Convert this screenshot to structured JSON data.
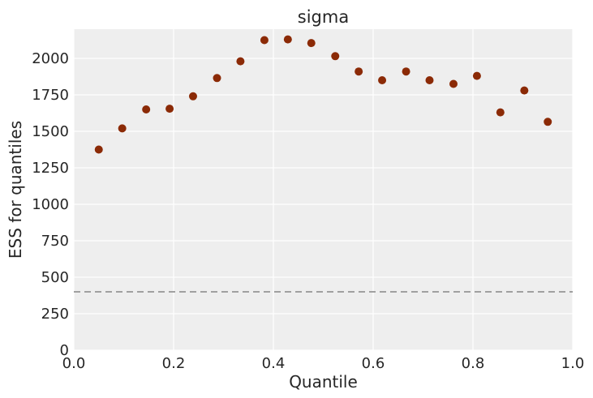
{
  "chart_data": {
    "type": "scatter",
    "title": "sigma",
    "xlabel": "Quantile",
    "ylabel": "ESS for quantiles",
    "xlim": [
      0,
      1
    ],
    "ylim": [
      0,
      2200
    ],
    "x_ticks": [
      0.0,
      0.2,
      0.4,
      0.6,
      0.8,
      1.0
    ],
    "x_tick_labels": [
      "0.0",
      "0.2",
      "0.4",
      "0.6",
      "0.8",
      "1.0"
    ],
    "y_ticks": [
      0,
      250,
      500,
      750,
      1000,
      1250,
      1500,
      1750,
      2000
    ],
    "y_tick_labels": [
      "0",
      "250",
      "500",
      "750",
      "1000",
      "1250",
      "1500",
      "1750",
      "2000"
    ],
    "grid": true,
    "background_color": "#eeeeee",
    "grid_color": "#ffffff",
    "point_color": "#8b2a06",
    "reference_line": {
      "y": 400,
      "style": "dashed",
      "color": "#a0a0a0"
    },
    "points": [
      {
        "x": 0.05,
        "y": 1375
      },
      {
        "x": 0.097,
        "y": 1520
      },
      {
        "x": 0.145,
        "y": 1650
      },
      {
        "x": 0.192,
        "y": 1655
      },
      {
        "x": 0.239,
        "y": 1740
      },
      {
        "x": 0.287,
        "y": 1865
      },
      {
        "x": 0.334,
        "y": 1980
      },
      {
        "x": 0.382,
        "y": 2125
      },
      {
        "x": 0.429,
        "y": 2130
      },
      {
        "x": 0.476,
        "y": 2105
      },
      {
        "x": 0.524,
        "y": 2015
      },
      {
        "x": 0.571,
        "y": 1910
      },
      {
        "x": 0.618,
        "y": 1850
      },
      {
        "x": 0.666,
        "y": 1910
      },
      {
        "x": 0.713,
        "y": 1850
      },
      {
        "x": 0.761,
        "y": 1825
      },
      {
        "x": 0.808,
        "y": 1880
      },
      {
        "x": 0.855,
        "y": 1630
      },
      {
        "x": 0.903,
        "y": 1780
      },
      {
        "x": 0.95,
        "y": 1565
      }
    ]
  }
}
